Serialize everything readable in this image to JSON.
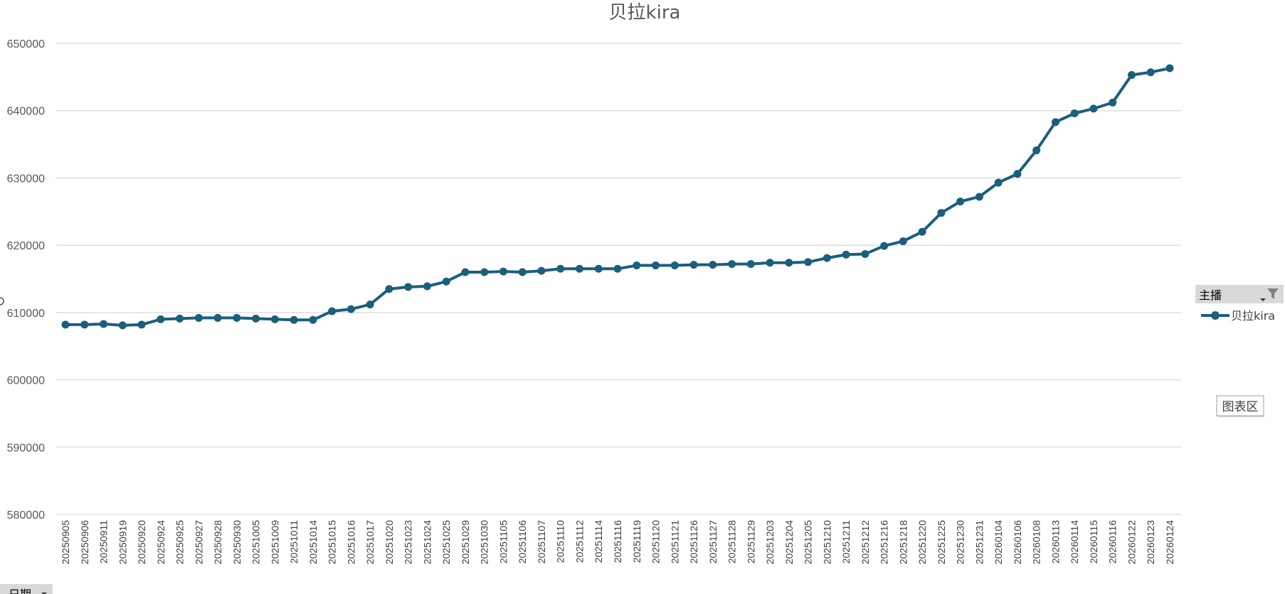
{
  "legend_field_button": {
    "label": "主播"
  },
  "axis_field_button": {
    "label": "日期"
  },
  "chart_area_tooltip": "图表区",
  "colors": {
    "series": "#1b5e7e",
    "grid": "#d9d9d9",
    "field_button_bg": "#d9d9d9"
  },
  "icons": {
    "filter": "filter-icon",
    "dropdown": "dropdown-arrow-icon"
  },
  "chart_data": {
    "type": "line",
    "title": "贝拉kira",
    "xlabel": "",
    "ylabel": "",
    "ylim": [
      580000,
      650000
    ],
    "yticks": [
      "650000",
      "640000",
      "630000",
      "620000",
      "610000",
      "600000",
      "590000",
      "580000"
    ],
    "grid": true,
    "legend_position": "right",
    "categories": [
      "20250905",
      "20250906",
      "20250911",
      "20250919",
      "20250920",
      "20250924",
      "20250925",
      "20250927",
      "20250928",
      "20250930",
      "20251005",
      "20251009",
      "20251011",
      "20251014",
      "20251015",
      "20251016",
      "20251017",
      "20251020",
      "20251023",
      "20251024",
      "20251025",
      "20251029",
      "20251030",
      "20251105",
      "20251106",
      "20251107",
      "20251110",
      "20251112",
      "20251114",
      "20251116",
      "20251119",
      "20251120",
      "20251121",
      "20251126",
      "20251127",
      "20251128",
      "20251129",
      "20251203",
      "20251204",
      "20251205",
      "20251210",
      "20251211",
      "20251212",
      "20251216",
      "20251218",
      "20251220",
      "20251225",
      "20251230",
      "20251231",
      "20260104",
      "20260106",
      "20260108",
      "20260113",
      "20260114",
      "20260115",
      "20260116",
      "20260122",
      "20260123",
      "20260124"
    ],
    "series": [
      {
        "name": "贝拉kira",
        "values": [
          608200,
          608200,
          608300,
          608100,
          608200,
          609000,
          609100,
          609200,
          609200,
          609200,
          609100,
          609000,
          608900,
          608900,
          610200,
          610500,
          611200,
          613500,
          613800,
          613900,
          614600,
          616000,
          616000,
          616100,
          616000,
          616200,
          616500,
          616500,
          616500,
          616500,
          617000,
          617000,
          617000,
          617100,
          617100,
          617200,
          617200,
          617400,
          617400,
          617500,
          618100,
          618600,
          618700,
          619900,
          620600,
          622000,
          624800,
          626500,
          627200,
          629300,
          630600,
          634100,
          638300,
          639600,
          640300,
          641200,
          645300,
          645700,
          646300
        ]
      }
    ]
  }
}
